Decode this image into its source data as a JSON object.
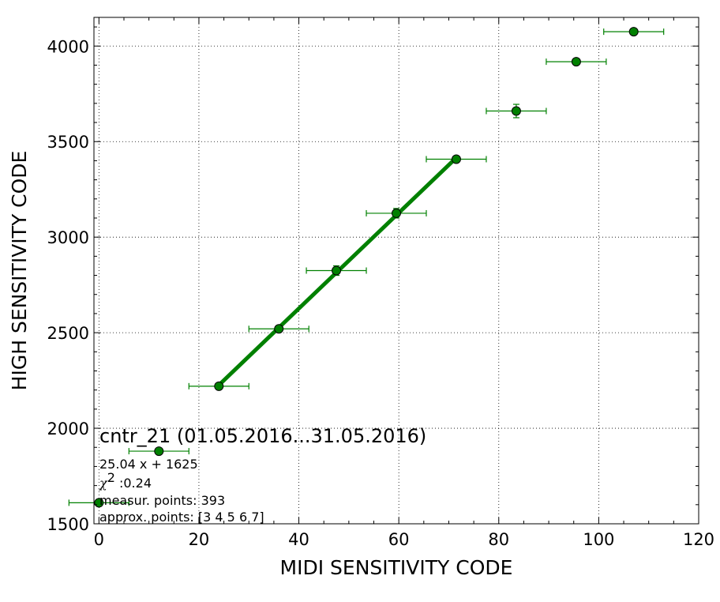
{
  "chart_data": {
    "type": "scatter",
    "xlabel": "MIDI SENSITIVITY CODE",
    "ylabel": "HIGH SENSITIVITY CODE",
    "xlim": [
      -1,
      120
    ],
    "ylim": [
      1500,
      4150
    ],
    "xticks": [
      "0",
      "20",
      "40",
      "60",
      "80",
      "100",
      "120"
    ],
    "yticks": [
      "1500",
      "2000",
      "2500",
      "3000",
      "3500",
      "4000"
    ],
    "grid": true,
    "color": "#008000",
    "points": [
      {
        "x": 0,
        "y": 1610,
        "xerr": 6,
        "yerr": 0
      },
      {
        "x": 12,
        "y": 1880,
        "xerr": 6,
        "yerr": 0
      },
      {
        "x": 24,
        "y": 2220,
        "xerr": 6,
        "yerr": 10
      },
      {
        "x": 36,
        "y": 2520,
        "xerr": 6,
        "yerr": 10
      },
      {
        "x": 47.5,
        "y": 2825,
        "xerr": 6,
        "yerr": 25
      },
      {
        "x": 59.5,
        "y": 3125,
        "xerr": 6,
        "yerr": 25
      },
      {
        "x": 71.5,
        "y": 3408,
        "xerr": 6,
        "yerr": 10
      },
      {
        "x": 83.5,
        "y": 3660,
        "xerr": 6,
        "yerr": 35
      },
      {
        "x": 95.5,
        "y": 3918,
        "xerr": 6,
        "yerr": 15
      },
      {
        "x": 107,
        "y": 4075,
        "xerr": 6,
        "yerr": 15
      }
    ],
    "fit": {
      "slope": 25.04,
      "intercept": 1625,
      "x_range": [
        24,
        71.5
      ]
    },
    "annotation": {
      "title": "cntr_21 (01.05.2016...31.05.2016)",
      "equation": "25.04 x + 1625",
      "chi_symbol": "χ",
      "chi_exp": "2",
      "chi_value": " :0.24",
      "measur_points": "measur. points: 393",
      "approx_points": "approx. points: [3 4 5 6 7]"
    }
  }
}
